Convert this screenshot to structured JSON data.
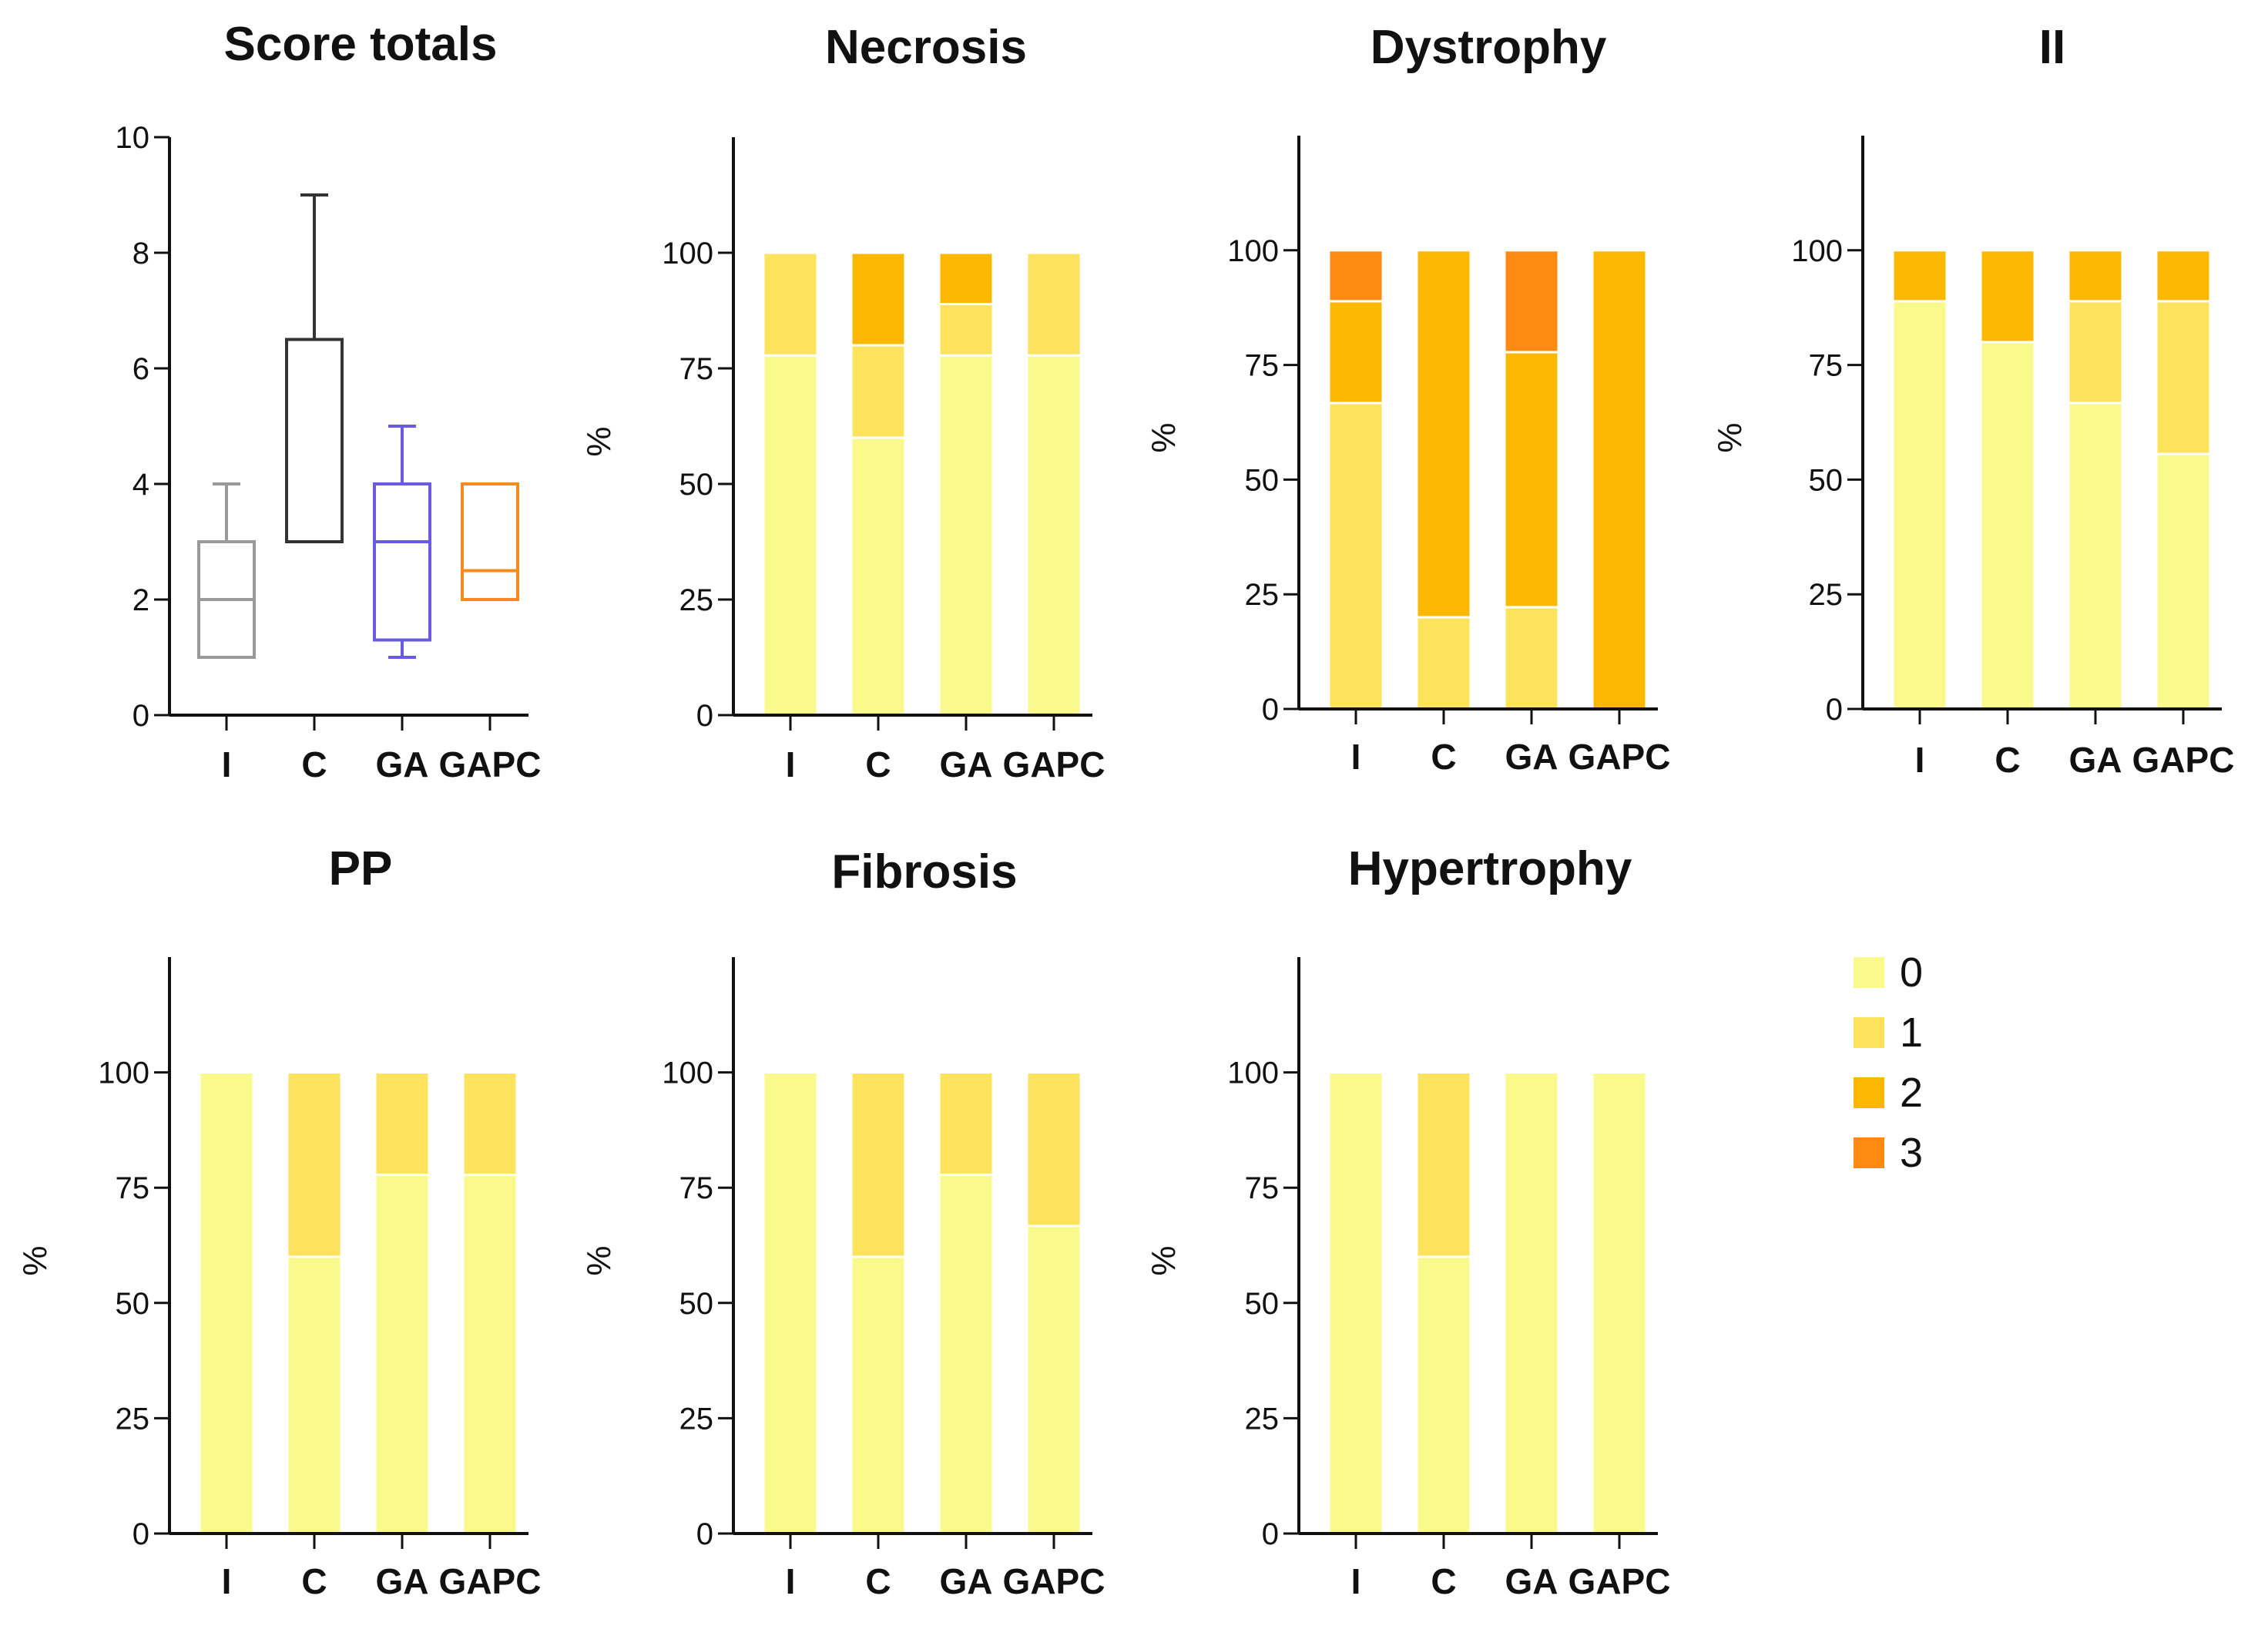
{
  "figure": {
    "legend": [
      {
        "label": "0",
        "color": "#FAFA8C"
      },
      {
        "label": "1",
        "color": "#FDE25C"
      },
      {
        "label": "2",
        "color": "#FCB800"
      },
      {
        "label": "3",
        "color": "#FD8A12"
      }
    ]
  },
  "chart_data": [
    {
      "type": "box",
      "title": "Score totals",
      "categories": [
        "I",
        "C",
        "GA",
        "GAPC"
      ],
      "ylim": [
        0,
        10
      ],
      "yticks": [
        "0",
        "2",
        "4",
        "6",
        "8",
        "10"
      ],
      "ylabel": "",
      "boxes": [
        {
          "min": 1,
          "q1": 1,
          "median": 2,
          "q3": 3,
          "max": 4,
          "color": "#9A9A9A"
        },
        {
          "min": 3,
          "q1": 3,
          "median": 3,
          "q3": 6.5,
          "max": 9,
          "color": "#333333"
        },
        {
          "min": 1,
          "q1": 1.3,
          "median": 3,
          "q3": 4,
          "max": 5,
          "color": "#6A5BE0"
        },
        {
          "min": 2,
          "q1": 2,
          "median": 2.5,
          "q3": 4,
          "max": 4,
          "color": "#F58A1E"
        }
      ]
    },
    {
      "type": "stacked_bar",
      "title": "Necrosis",
      "ylabel": "%",
      "categories": [
        "I",
        "C",
        "GA",
        "GAPC"
      ],
      "ylim": [
        0,
        125
      ],
      "yticks": [
        "0",
        "25",
        "50",
        "75",
        "100"
      ],
      "series": [
        {
          "name": "0",
          "values": [
            77.8,
            60,
            77.8,
            77.8
          ]
        },
        {
          "name": "1",
          "values": [
            22.2,
            20,
            11.1,
            22.2
          ]
        },
        {
          "name": "2",
          "values": [
            0,
            20,
            11.1,
            0
          ]
        },
        {
          "name": "3",
          "values": [
            0,
            0,
            0,
            0
          ]
        }
      ]
    },
    {
      "type": "stacked_bar",
      "title": "Dystrophy",
      "ylabel": "%",
      "categories": [
        "I",
        "C",
        "GA",
        "GAPC"
      ],
      "ylim": [
        0,
        125
      ],
      "yticks": [
        "0",
        "25",
        "50",
        "75",
        "100"
      ],
      "series": [
        {
          "name": "0",
          "values": [
            0,
            0,
            0,
            0
          ]
        },
        {
          "name": "1",
          "values": [
            66.7,
            20,
            22.2,
            0
          ]
        },
        {
          "name": "2",
          "values": [
            22.2,
            80,
            55.6,
            100
          ]
        },
        {
          "name": "3",
          "values": [
            11.1,
            0,
            22.2,
            0
          ]
        }
      ]
    },
    {
      "type": "stacked_bar",
      "title": "II",
      "ylabel": "%",
      "categories": [
        "I",
        "C",
        "GA",
        "GAPC"
      ],
      "ylim": [
        0,
        125
      ],
      "yticks": [
        "0",
        "25",
        "50",
        "75",
        "100"
      ],
      "series": [
        {
          "name": "0",
          "values": [
            88.9,
            80,
            66.7,
            55.6
          ]
        },
        {
          "name": "1",
          "values": [
            0,
            0,
            22.2,
            33.3
          ]
        },
        {
          "name": "2",
          "values": [
            11.1,
            20,
            11.1,
            11.1
          ]
        },
        {
          "name": "3",
          "values": [
            0,
            0,
            0,
            0
          ]
        }
      ]
    },
    {
      "type": "stacked_bar",
      "title": "PP",
      "ylabel": "%",
      "categories": [
        "I",
        "C",
        "GA",
        "GAPC"
      ],
      "ylim": [
        0,
        125
      ],
      "yticks": [
        "0",
        "25",
        "50",
        "75",
        "100"
      ],
      "series": [
        {
          "name": "0",
          "values": [
            100,
            60,
            77.8,
            77.8
          ]
        },
        {
          "name": "1",
          "values": [
            0,
            40,
            22.2,
            22.2
          ]
        },
        {
          "name": "2",
          "values": [
            0,
            0,
            0,
            0
          ]
        },
        {
          "name": "3",
          "values": [
            0,
            0,
            0,
            0
          ]
        }
      ]
    },
    {
      "type": "stacked_bar",
      "title": "Fibrosis",
      "ylabel": "%",
      "categories": [
        "I",
        "C",
        "GA",
        "GAPC"
      ],
      "ylim": [
        0,
        125
      ],
      "yticks": [
        "0",
        "25",
        "50",
        "75",
        "100"
      ],
      "series": [
        {
          "name": "0",
          "values": [
            100,
            60,
            77.8,
            66.7
          ]
        },
        {
          "name": "1",
          "values": [
            0,
            40,
            22.2,
            33.3
          ]
        },
        {
          "name": "2",
          "values": [
            0,
            0,
            0,
            0
          ]
        },
        {
          "name": "3",
          "values": [
            0,
            0,
            0,
            0
          ]
        }
      ]
    },
    {
      "type": "stacked_bar",
      "title": "Hypertrophy",
      "ylabel": "%",
      "categories": [
        "I",
        "C",
        "GA",
        "GAPC"
      ],
      "ylim": [
        0,
        125
      ],
      "yticks": [
        "0",
        "25",
        "50",
        "75",
        "100"
      ],
      "series": [
        {
          "name": "0",
          "values": [
            100,
            60,
            100,
            100
          ]
        },
        {
          "name": "1",
          "values": [
            0,
            40,
            0,
            0
          ]
        },
        {
          "name": "2",
          "values": [
            0,
            0,
            0,
            0
          ]
        },
        {
          "name": "3",
          "values": [
            0,
            0,
            0,
            0
          ]
        }
      ]
    }
  ]
}
